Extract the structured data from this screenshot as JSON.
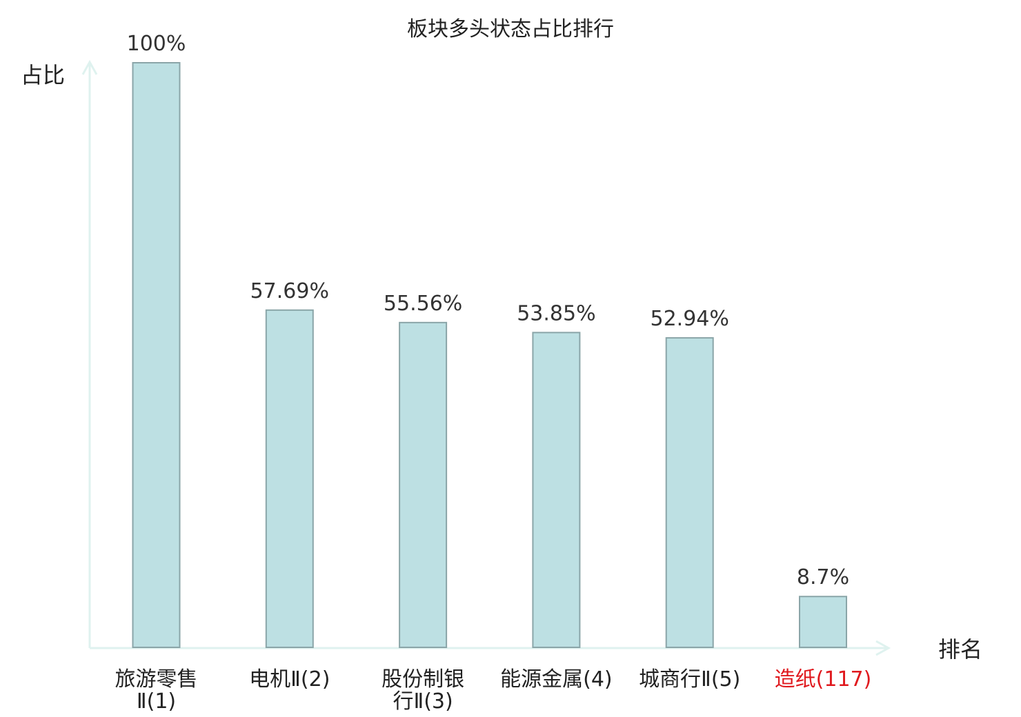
{
  "chart_data": {
    "type": "bar",
    "title": "板块多头状态占比排行",
    "ylabel": "占比",
    "xlabel": "排名",
    "categories": [
      {
        "name": "旅游零售",
        "suffix": "Ⅱ(1)",
        "highlight": false
      },
      {
        "name": "电机",
        "suffix": "Ⅱ(2)",
        "highlight": false
      },
      {
        "name": "股份制银行",
        "suffix": "Ⅱ(3)",
        "highlight": false
      },
      {
        "name": "能源金属",
        "suffix": "(4)",
        "highlight": false
      },
      {
        "name": "城商行",
        "suffix": "Ⅱ(5)",
        "highlight": false
      },
      {
        "name": "造纸",
        "suffix": "(117)",
        "highlight": true
      }
    ],
    "values": [
      100,
      57.69,
      55.56,
      53.85,
      52.94,
      8.7
    ],
    "value_labels": [
      "100%",
      "57.69%",
      "55.56%",
      "53.85%",
      "52.94%",
      "8.7%"
    ],
    "tick_lines": [
      [
        "旅游零售",
        "Ⅱ(1)"
      ],
      [
        "电机Ⅱ(2)"
      ],
      [
        "股份制银",
        "行Ⅱ(3)"
      ],
      [
        "能源金属(4)"
      ],
      [
        "城商行Ⅱ(5)"
      ],
      [
        "造纸(117)"
      ]
    ],
    "ylim": [
      0,
      100
    ],
    "grid": false,
    "colors": {
      "bar_fill": "#bde0e3",
      "bar_stroke": "#8aa5a8",
      "axis": "#dff2ef",
      "text": "#222222",
      "highlight": "#e0191e"
    }
  }
}
